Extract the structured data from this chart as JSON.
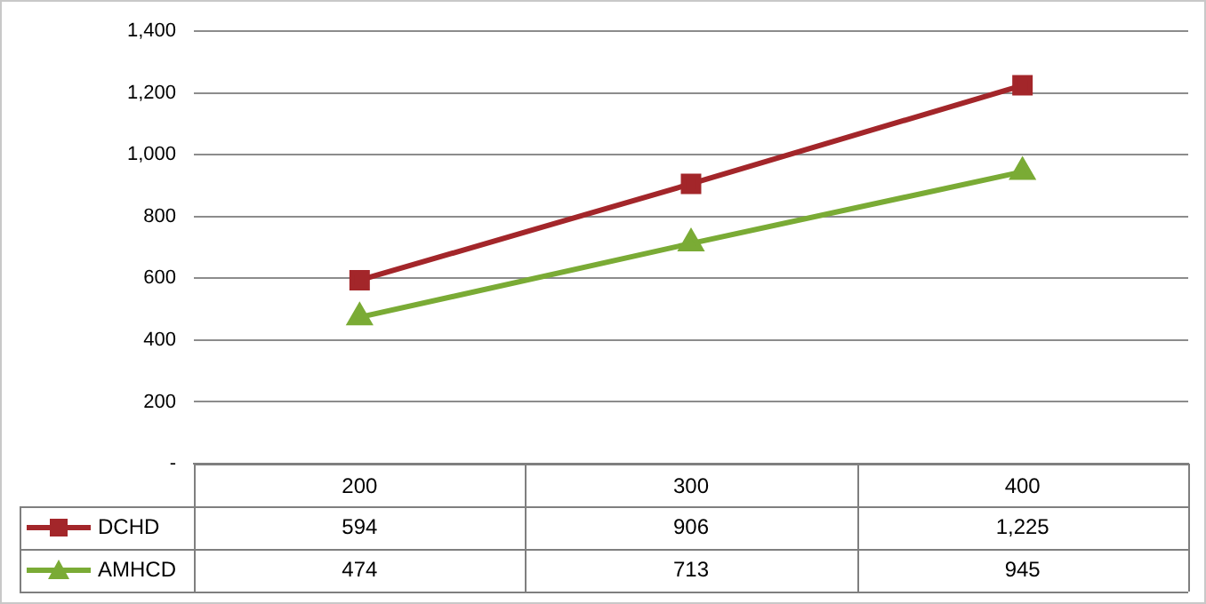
{
  "chart_data": {
    "type": "line",
    "categories": [
      "200",
      "300",
      "400"
    ],
    "series": [
      {
        "name": "DCHD",
        "color": "#a3262a",
        "marker": "square",
        "values": [
          594,
          906,
          1225
        ],
        "value_labels": [
          "594",
          "906",
          "1,225"
        ]
      },
      {
        "name": "AMHCD",
        "color": "#7aab35",
        "marker": "triangle",
        "values": [
          474,
          713,
          945
        ],
        "value_labels": [
          "474",
          "713",
          "945"
        ]
      }
    ],
    "ylim": [
      0,
      1400
    ],
    "yticks": [
      {
        "value": 0,
        "label": "-"
      },
      200,
      400,
      600,
      800,
      {
        "value": 1000,
        "label": "1,000"
      },
      {
        "value": 1200,
        "label": "1,200"
      },
      {
        "value": 1400,
        "label": "1,400"
      }
    ],
    "grid": "y",
    "legend": "bottom left",
    "line_style": "solid"
  }
}
